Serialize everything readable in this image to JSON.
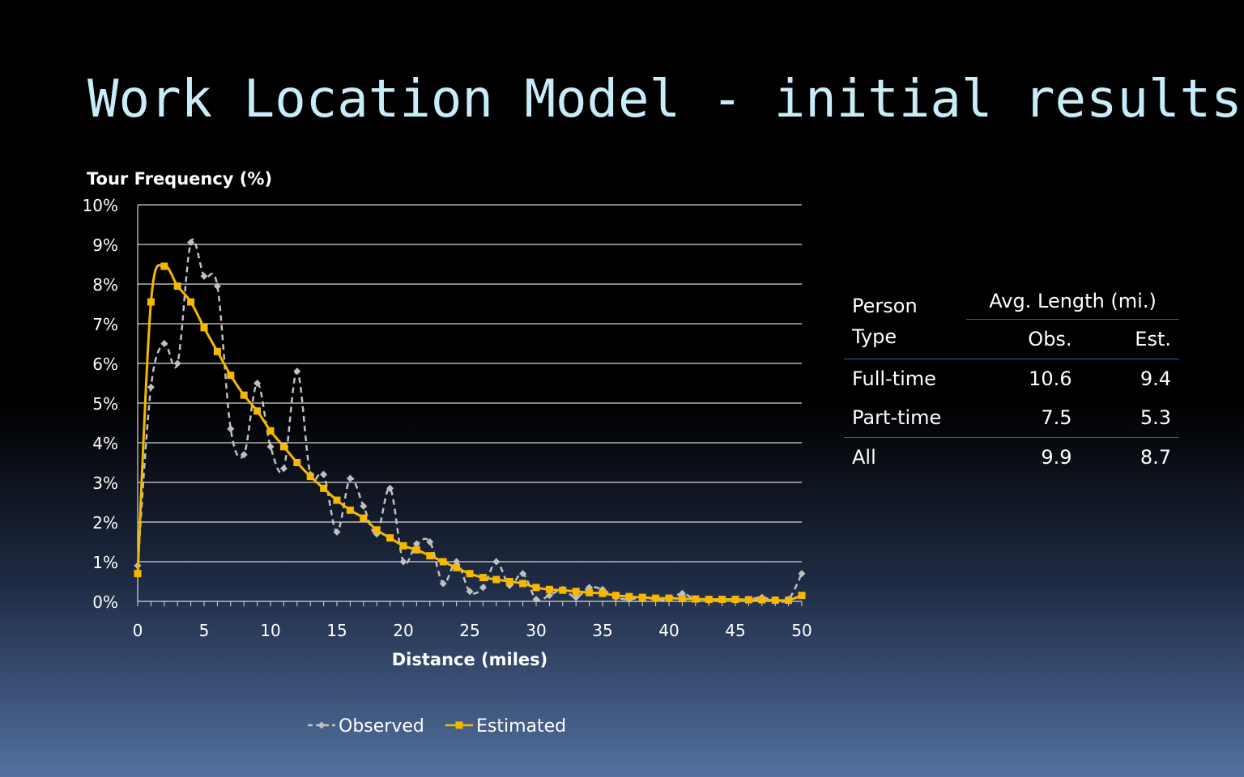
{
  "slide": {
    "title": "Work Location Model - initial results"
  },
  "chart_data": {
    "type": "line",
    "title": "",
    "xlabel": "Distance (miles)",
    "ylabel": "Tour Frequency (%)",
    "xlim": [
      0,
      50
    ],
    "ylim": [
      0,
      10
    ],
    "xticks": [
      0,
      5,
      10,
      15,
      20,
      25,
      30,
      35,
      40,
      45,
      50
    ],
    "yticks": [
      0,
      1,
      2,
      3,
      4,
      5,
      6,
      7,
      8,
      9,
      10
    ],
    "ytick_labels": [
      "0%",
      "1%",
      "2%",
      "3%",
      "4%",
      "5%",
      "6%",
      "7%",
      "8%",
      "9%",
      "10%"
    ],
    "grid": "horizontal",
    "legend": "bottom",
    "x": [
      0,
      1,
      2,
      3,
      4,
      5,
      6,
      7,
      8,
      9,
      10,
      11,
      12,
      13,
      14,
      15,
      16,
      17,
      18,
      19,
      20,
      21,
      22,
      23,
      24,
      25,
      26,
      27,
      28,
      29,
      30,
      31,
      32,
      33,
      34,
      35,
      36,
      37,
      38,
      39,
      40,
      41,
      42,
      43,
      44,
      45,
      46,
      47,
      48,
      49,
      50
    ],
    "series": [
      {
        "name": "Observed",
        "color": "#c0c0c0",
        "style": "dashed",
        "marker": "diamond",
        "values": [
          0.9,
          5.4,
          6.5,
          6.0,
          9.05,
          8.2,
          7.95,
          4.35,
          3.7,
          5.5,
          3.9,
          3.35,
          5.8,
          3.2,
          3.2,
          1.75,
          3.1,
          2.4,
          1.7,
          2.85,
          1.0,
          1.45,
          1.5,
          0.45,
          1.0,
          0.25,
          0.35,
          1.0,
          0.4,
          0.7,
          0.05,
          0.15,
          0.3,
          0.1,
          0.35,
          0.3,
          0.1,
          0.05,
          0.1,
          0.05,
          0.05,
          0.2,
          0.05,
          0.02,
          0.05,
          0.05,
          0.05,
          0.1,
          0.02,
          0.05,
          0.7
        ]
      },
      {
        "name": "Estimated",
        "color": "#f5b800",
        "style": "solid",
        "marker": "square",
        "values": [
          0.7,
          7.55,
          8.45,
          7.95,
          7.55,
          6.9,
          6.3,
          5.7,
          5.2,
          4.8,
          4.3,
          3.9,
          3.5,
          3.15,
          2.85,
          2.55,
          2.3,
          2.1,
          1.8,
          1.6,
          1.4,
          1.3,
          1.15,
          1.0,
          0.85,
          0.7,
          0.6,
          0.55,
          0.5,
          0.45,
          0.35,
          0.3,
          0.28,
          0.25,
          0.22,
          0.2,
          0.15,
          0.12,
          0.1,
          0.08,
          0.08,
          0.07,
          0.06,
          0.05,
          0.05,
          0.05,
          0.04,
          0.04,
          0.03,
          0.03,
          0.15
        ]
      }
    ]
  },
  "table": {
    "col1_header_line1": "Person",
    "col1_header_line2": "Type",
    "group_header": "Avg. Length (mi.)",
    "sub_headers": [
      "Obs.",
      "Est."
    ],
    "rows": [
      {
        "type": "Full-time",
        "obs": "10.6",
        "est": "9.4"
      },
      {
        "type": "Part-time",
        "obs": "7.5",
        "est": "5.3"
      },
      {
        "type": "All",
        "obs": "9.9",
        "est": "8.7"
      }
    ]
  }
}
